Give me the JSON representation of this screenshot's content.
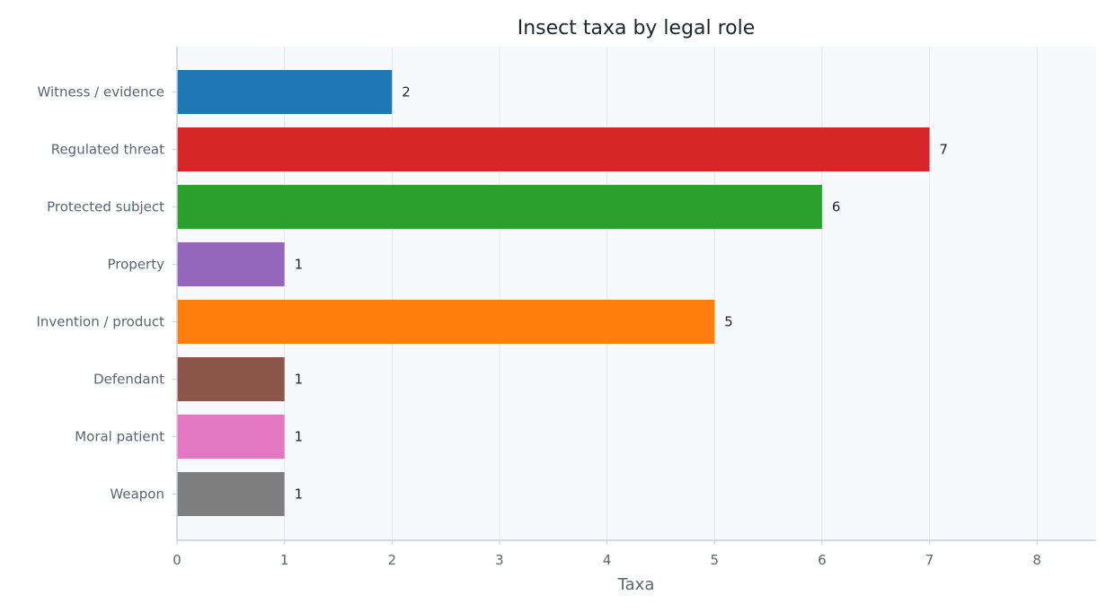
{
  "chart_data": {
    "type": "bar",
    "orientation": "horizontal",
    "title": "Insect taxa by legal role",
    "xlabel": "Taxa",
    "ylabel": "",
    "xlim": [
      0,
      8.55
    ],
    "xticks": [
      "0",
      "1",
      "2",
      "3",
      "4",
      "5",
      "6",
      "7",
      "8"
    ],
    "grid": true,
    "categories": [
      "Witness / evidence",
      "Regulated threat",
      "Protected subject",
      "Property",
      "Invention / product",
      "Defendant",
      "Moral patient",
      "Weapon"
    ],
    "values": [
      2,
      7,
      6,
      1,
      5,
      1,
      1,
      1
    ],
    "data_labels": [
      "2",
      "7",
      "6",
      "1",
      "5",
      "1",
      "1",
      "1"
    ],
    "colors": [
      "#1f77b4",
      "#d62728",
      "#2ca02c",
      "#9467bd",
      "#ff7f0e",
      "#8c564b",
      "#e377c2",
      "#7f7f7f"
    ],
    "plot_background": "#f7f9fc",
    "grid_color": "#e3e7ee",
    "axis_color": "#c9d0dc"
  }
}
